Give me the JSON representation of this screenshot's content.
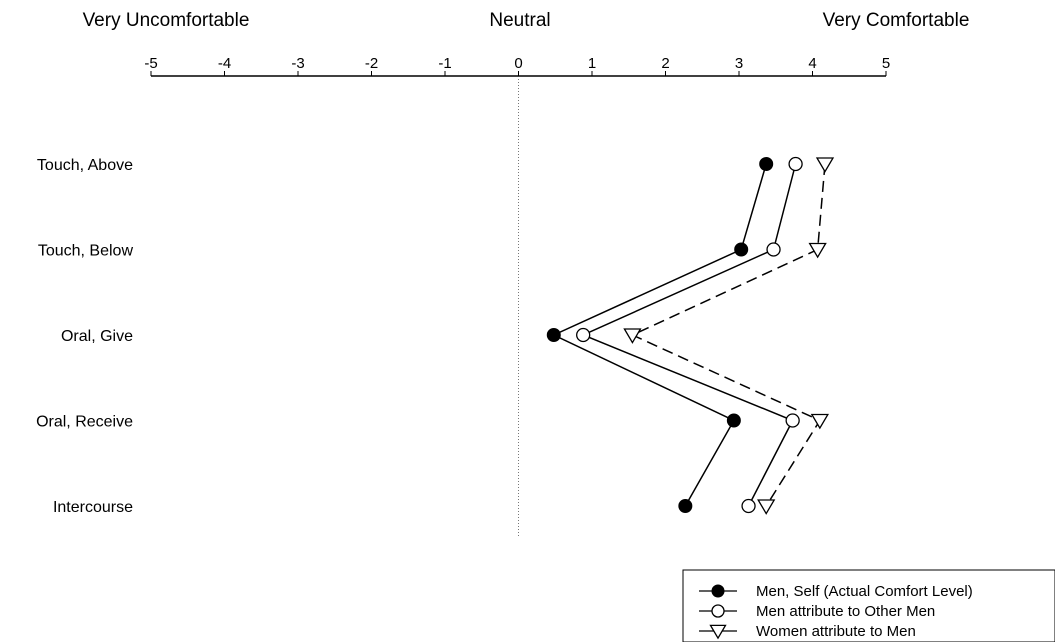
{
  "chart_data": {
    "type": "line",
    "orientation": "horizontal",
    "scale_labels": {
      "left": "Very Uncomfortable",
      "center": "Neutral",
      "right": "Very Comfortable"
    },
    "x_ticks": [
      "-5",
      "-4",
      "-3",
      "-2",
      "-1",
      "0",
      "1",
      "2",
      "3",
      "4",
      "5"
    ],
    "xlim": [
      -5,
      5
    ],
    "zero_reference_line": true,
    "categories": [
      "Touch, Above",
      "Touch, Below",
      "Oral, Give",
      "Oral, Receive",
      "Intercourse"
    ],
    "series": [
      {
        "name": "Men, Self (Actual Comfort Level)",
        "marker": "filled-circle",
        "line": "solid",
        "values": [
          3.37,
          3.03,
          0.48,
          2.93,
          2.27
        ]
      },
      {
        "name": "Men attribute to Other Men",
        "marker": "open-circle",
        "line": "solid",
        "values": [
          3.77,
          3.47,
          0.88,
          3.73,
          3.13
        ]
      },
      {
        "name": "Women attribute to Men",
        "marker": "open-triangle-down",
        "line": "dashed",
        "values": [
          4.17,
          4.07,
          1.55,
          4.1,
          3.37
        ]
      }
    ],
    "legend_position": "bottom-right",
    "grid": false
  }
}
